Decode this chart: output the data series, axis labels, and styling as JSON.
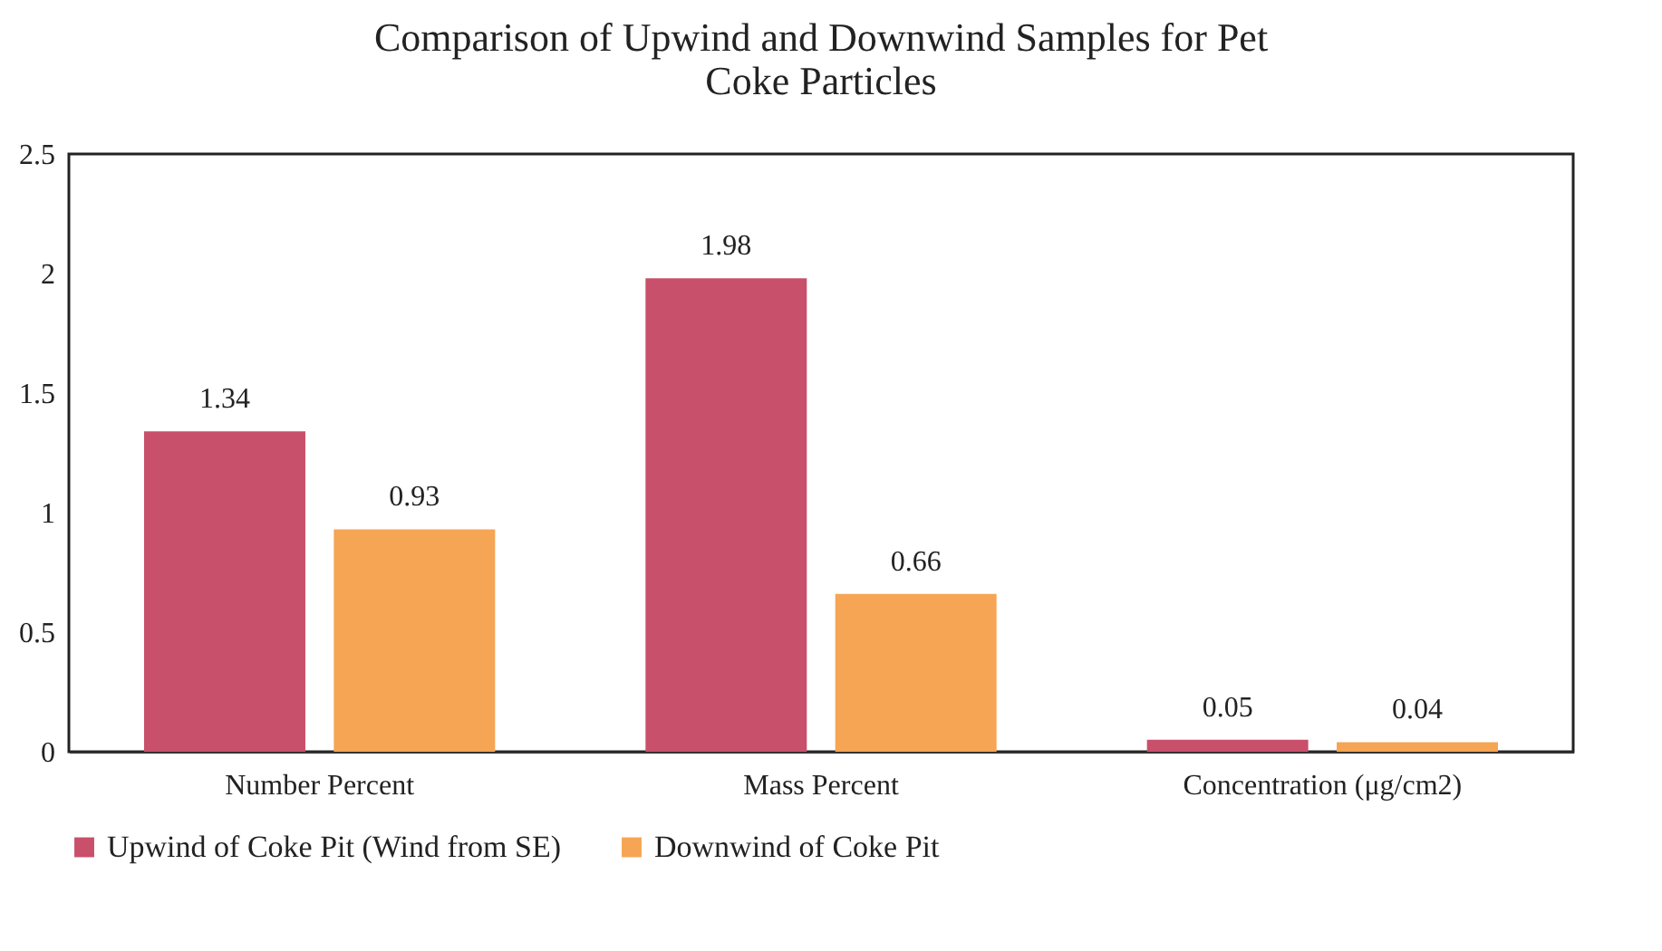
{
  "chart_data": {
    "type": "bar",
    "title": "Comparison of Upwind and Downwind Samples for Pet Coke Particles",
    "categories": [
      "Number Percent",
      "Mass Percent",
      "Concentration (μg/cm2)"
    ],
    "series": [
      {
        "name": "Upwind of Coke Pit (Wind from SE)",
        "color": "#c8506a",
        "values": [
          1.34,
          1.98,
          0.05
        ]
      },
      {
        "name": "Downwind of Coke Pit",
        "color": "#f5a553",
        "values": [
          0.93,
          0.66,
          0.04
        ]
      }
    ],
    "ylim": [
      0,
      2.5
    ],
    "yticks": [
      0,
      0.5,
      1,
      1.5,
      2,
      2.5
    ],
    "data_labels": true,
    "legend": "bottom"
  }
}
